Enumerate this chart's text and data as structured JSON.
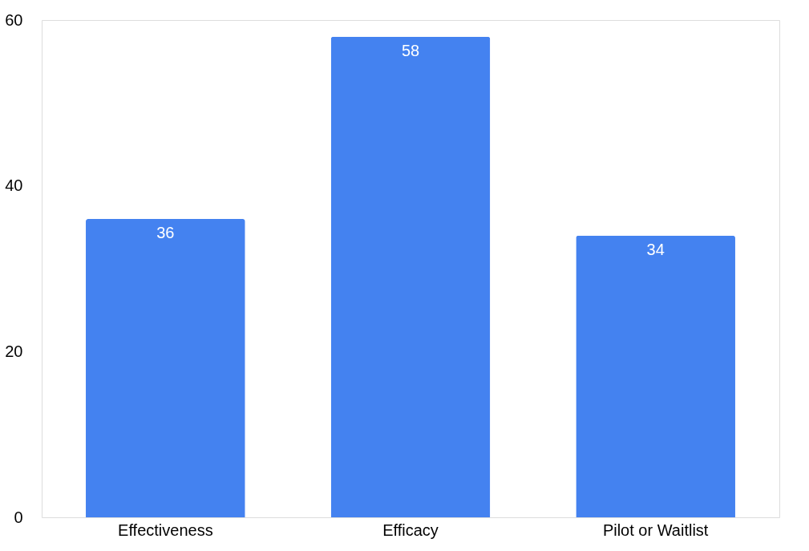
{
  "chart_data": {
    "type": "bar",
    "categories": [
      "Effectiveness",
      "Efficacy",
      "Pilot or Waitlist"
    ],
    "values": [
      36,
      58,
      34
    ],
    "color": "#4482f0",
    "ylim": [
      0,
      60
    ],
    "yticks": [
      0,
      20,
      40,
      60
    ],
    "grid": false,
    "data_labels": true
  }
}
